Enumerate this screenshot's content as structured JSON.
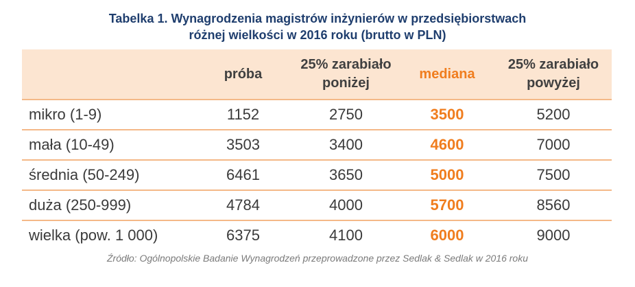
{
  "title": {
    "line1": "Tabelka 1. Wynagrodzenia magistrów inżynierów w przedsiębiorstwach",
    "line2": "różnej wielkości w 2016 roku (brutto w PLN)"
  },
  "table": {
    "headers": {
      "col0": "",
      "col1": "próba",
      "col2_line1": "25% zarabiało",
      "col2_line2": "poniżej",
      "col3": "mediana",
      "col4_line1": "25% zarabiało",
      "col4_line2": "powyżej"
    },
    "rows": [
      {
        "label": "mikro (1-9)",
        "sample": "1152",
        "lower": "2750",
        "median": "3500",
        "upper": "5200"
      },
      {
        "label": "mała (10-49)",
        "sample": "3503",
        "lower": "3400",
        "median": "4600",
        "upper": "7000"
      },
      {
        "label": "średnia (50-249)",
        "sample": "6461",
        "lower": "3650",
        "median": "5000",
        "upper": "7500"
      },
      {
        "label": "duża (250-999)",
        "sample": "4784",
        "lower": "4000",
        "median": "5700",
        "upper": "8560"
      },
      {
        "label": "wielka (pow. 1 000)",
        "sample": "6375",
        "lower": "4100",
        "median": "6000",
        "upper": "9000"
      }
    ]
  },
  "source": "Źródło: Ogólnopolskie Badanie Wynagrodzeń przeprowadzone przez Sedlak & Sedlak w 2016 roku",
  "colors": {
    "title": "#1f3e6e",
    "header_bg": "#fce5d1",
    "accent": "#f07d1e",
    "row_divider": "#f4b887"
  }
}
